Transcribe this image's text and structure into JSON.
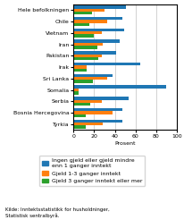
{
  "chart_data": {
    "type": "bar",
    "orientation": "horizontal",
    "categories": [
      "Hele befolkningen",
      "Chile",
      "Vietnam",
      "Iran",
      "Pakistan",
      "Irak",
      "Sri Lanka",
      "Somalia",
      "Serbia",
      "Bosnia Hercegovina",
      "Tyrkia"
    ],
    "series": [
      {
        "name": "Ingen gjeld eller gjeld mindre\nenn 1 ganger inntekt",
        "values": [
          51,
          47,
          49,
          45,
          41,
          65,
          38,
          90,
          53,
          47,
          47
        ]
      },
      {
        "name": "Gjeld 1-3 ganger inntekt",
        "values": [
          30,
          33,
          27,
          28,
          27,
          13,
          33,
          5,
          27,
          38,
          28
        ]
      },
      {
        "name": "Gjeld 3 ganger inntekt eller mer",
        "values": [
          18,
          15,
          20,
          23,
          24,
          13,
          19,
          5,
          16,
          12,
          12
        ]
      }
    ],
    "x_label": "Prosent",
    "xlim": [
      0,
      100
    ],
    "xticks": [
      0,
      20,
      40,
      60,
      80,
      100
    ],
    "grid": true,
    "legend": "upper center",
    "annotations": [
      "Kilde: Inntektsstatistikk for husholdninger,\nStatistisk sentralbyrå."
    ]
  }
}
